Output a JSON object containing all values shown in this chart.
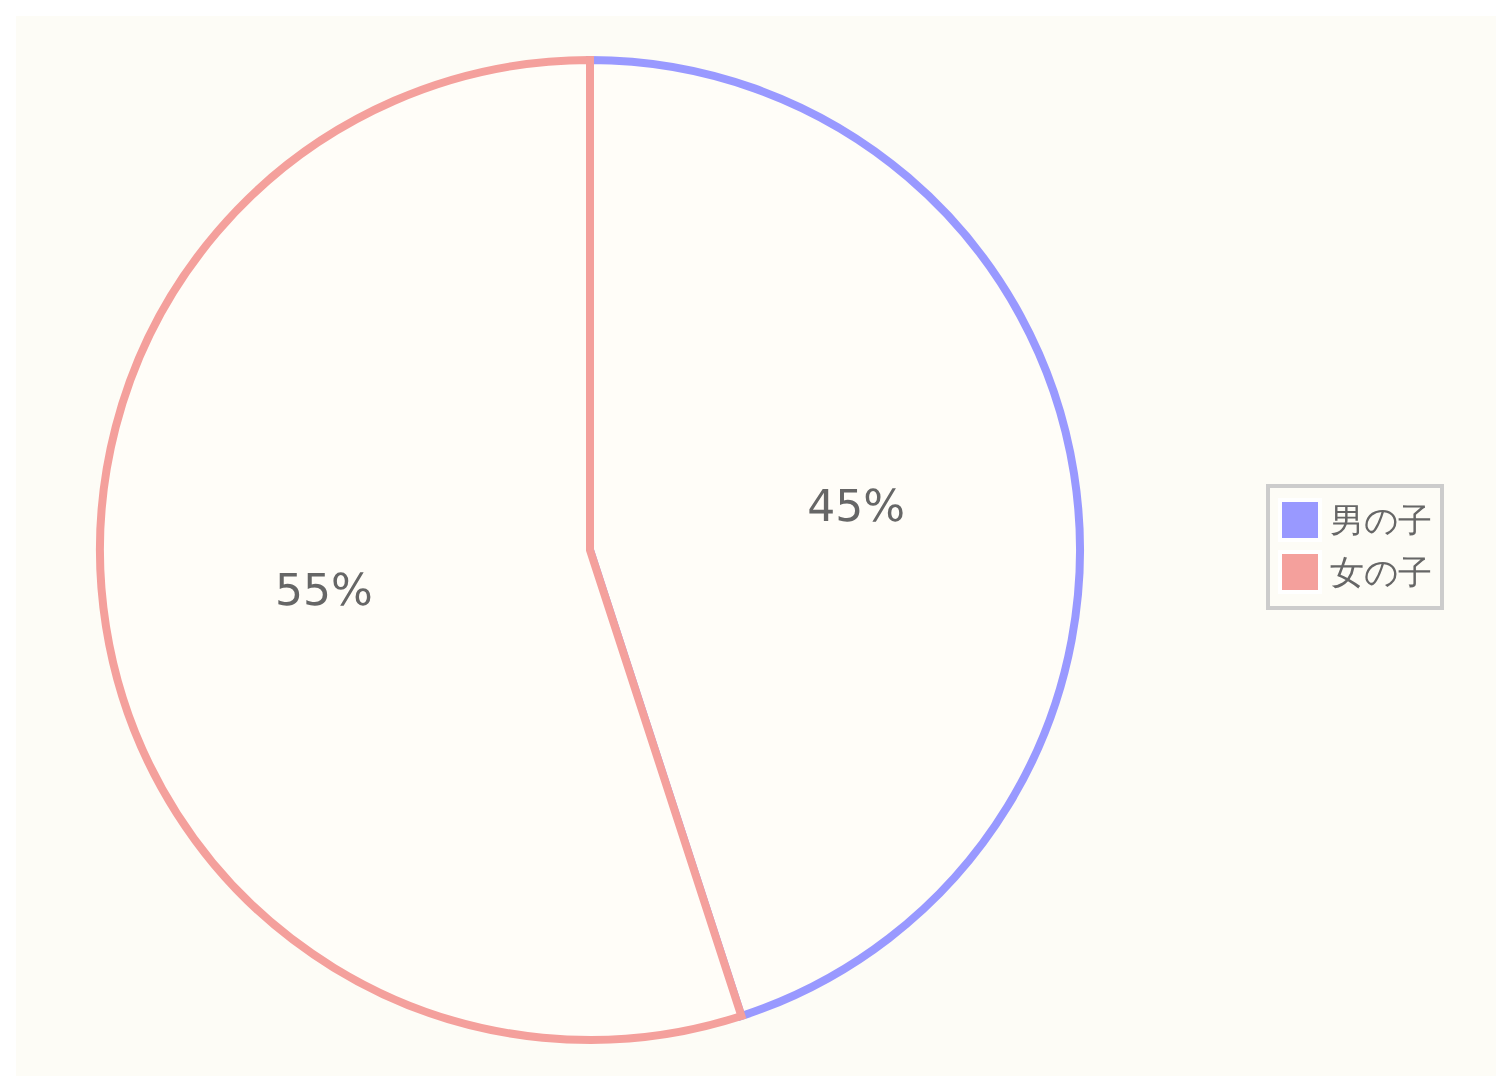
{
  "chart_data": {
    "type": "pie",
    "categories": [
      "男の子",
      "女の子"
    ],
    "values": [
      45,
      55
    ],
    "colors": [
      "#9999ff",
      "#f4a09c"
    ],
    "value_labels": [
      "45%",
      "55%"
    ],
    "legend": "right"
  }
}
